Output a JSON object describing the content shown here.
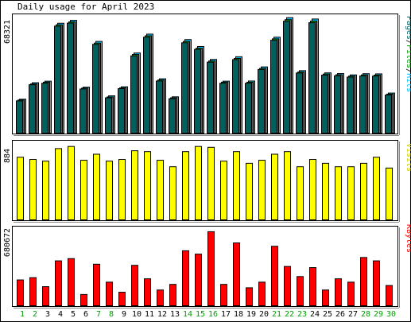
{
  "title": "Daily usage for April 2023",
  "colors": {
    "hits": "#00C0FF",
    "files": "#00A000",
    "pages": "#006060",
    "visits": "#FFFF00",
    "kbytes": "#FF0000",
    "weekend_label": "#00A000",
    "weekday_label": "#000000"
  },
  "chart_data": [
    {
      "type": "bar",
      "name": "hits_files_pages",
      "y_max_label": "68321",
      "legend_parts": [
        {
          "text": "Pages",
          "color": "#006060"
        },
        {
          "text": "/",
          "color": "#000000"
        },
        {
          "text": "Files",
          "color": "#00A000"
        },
        {
          "text": "/",
          "color": "#000000"
        },
        {
          "text": "Hits",
          "color": "#00C0FF"
        }
      ],
      "categories": [
        "1",
        "2",
        "3",
        "4",
        "5",
        "6",
        "7",
        "8",
        "9",
        "10",
        "11",
        "12",
        "13",
        "14",
        "15",
        "16",
        "17",
        "18",
        "19",
        "20",
        "21",
        "22",
        "23",
        "24",
        "25",
        "26",
        "27",
        "28",
        "29",
        "30"
      ],
      "series": [
        {
          "name": "Hits",
          "values": [
            20000,
            29700,
            30600,
            64700,
            66400,
            27100,
            54000,
            22000,
            27300,
            47200,
            58300,
            32000,
            21400,
            55100,
            51000,
            43400,
            30600,
            45000,
            30700,
            39000,
            56500,
            68000,
            36800,
            67200,
            35500,
            35100,
            34300,
            35000,
            34900,
            23600
          ]
        },
        {
          "name": "Files",
          "values": [
            19500,
            29000,
            30000,
            63800,
            65500,
            26500,
            53000,
            21300,
            26700,
            46300,
            57300,
            31300,
            20800,
            54000,
            50000,
            42500,
            30000,
            44000,
            30000,
            38100,
            55500,
            66800,
            36000,
            66000,
            34800,
            34400,
            33600,
            34300,
            34200,
            23000
          ]
        },
        {
          "name": "Pages",
          "values": [
            19000,
            28500,
            29400,
            63000,
            64800,
            26000,
            52300,
            20800,
            26200,
            45500,
            56500,
            30700,
            20300,
            53200,
            49300,
            41800,
            29400,
            43300,
            29400,
            37500,
            54700,
            65900,
            35400,
            65000,
            34200,
            33800,
            33000,
            33700,
            33600,
            22500
          ]
        }
      ]
    },
    {
      "type": "bar",
      "name": "visits",
      "y_max_label": "884",
      "legend": "Visits",
      "categories": [
        "1",
        "2",
        "3",
        "4",
        "5",
        "6",
        "7",
        "8",
        "9",
        "10",
        "11",
        "12",
        "13",
        "14",
        "15",
        "16",
        "17",
        "18",
        "19",
        "20",
        "21",
        "22",
        "23",
        "24",
        "25",
        "26",
        "27",
        "28",
        "29",
        "30"
      ],
      "values": [
        725,
        700,
        680,
        825,
        850,
        690,
        760,
        680,
        700,
        800,
        790,
        690,
        615,
        790,
        850,
        840,
        680,
        790,
        655,
        690,
        760,
        790,
        615,
        700,
        655,
        615,
        615,
        655,
        725,
        600
      ]
    },
    {
      "type": "bar",
      "name": "kbytes",
      "y_max_label": "680672",
      "legend": "KBytes",
      "categories": [
        "1",
        "2",
        "3",
        "4",
        "5",
        "6",
        "7",
        "8",
        "9",
        "10",
        "11",
        "12",
        "13",
        "14",
        "15",
        "16",
        "17",
        "18",
        "19",
        "20",
        "21",
        "22",
        "23",
        "24",
        "25",
        "26",
        "27",
        "28",
        "29",
        "30"
      ],
      "values": [
        230000,
        250000,
        170000,
        400000,
        420000,
        100000,
        370000,
        210000,
        120000,
        360000,
        240000,
        140000,
        190000,
        490000,
        460000,
        660000,
        190000,
        560000,
        160000,
        210000,
        530000,
        350000,
        260000,
        340000,
        140000,
        240000,
        210000,
        430000,
        400000,
        180000
      ]
    }
  ],
  "weekend_days": [
    1,
    2,
    7,
    8,
    14,
    15,
    16,
    21,
    22,
    23,
    28,
    29,
    30
  ]
}
